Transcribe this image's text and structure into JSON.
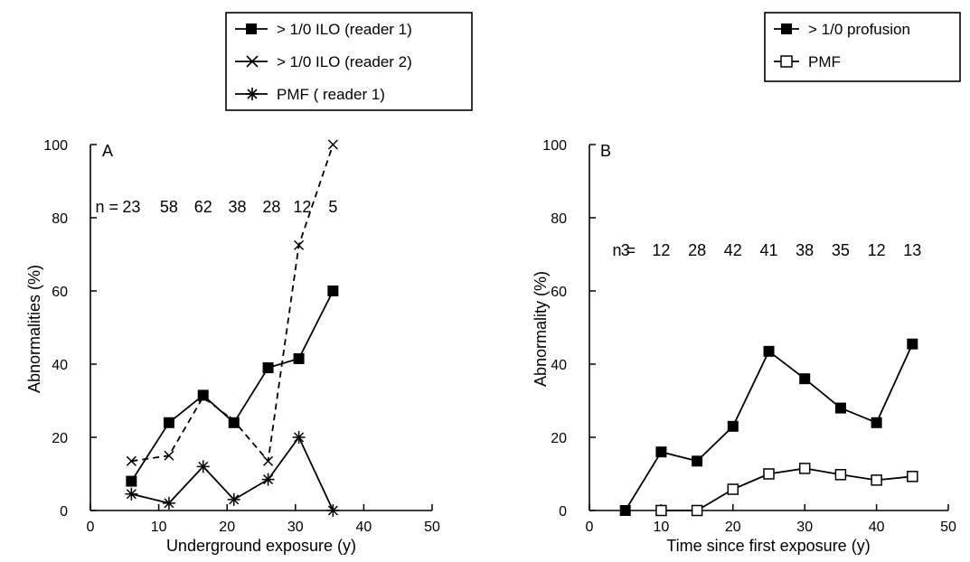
{
  "chart_data": [
    {
      "type": "line",
      "panel_label": "A",
      "xlabel": "Underground exposure (y)",
      "ylabel": "Abnormalities (%)",
      "xlim": [
        0,
        50
      ],
      "ylim": [
        0,
        100
      ],
      "xticks": [
        0,
        10,
        20,
        30,
        40,
        50
      ],
      "yticks": [
        0,
        20,
        40,
        60,
        80,
        100
      ],
      "n_prefix": "n = ",
      "n_labels": [
        {
          "x": 6,
          "text": "23"
        },
        {
          "x": 11.5,
          "text": "58"
        },
        {
          "x": 16.5,
          "text": "62"
        },
        {
          "x": 21.5,
          "text": "38"
        },
        {
          "x": 26.5,
          "text": "28"
        },
        {
          "x": 31,
          "text": "12"
        },
        {
          "x": 35.5,
          "text": "5"
        }
      ],
      "legend_position": "top",
      "series": [
        {
          "name": "> 1/0 ILO (reader 1)",
          "marker": "filled-square",
          "line": "solid",
          "x": [
            6,
            11.5,
            16.5,
            21,
            26,
            30.5,
            35.5
          ],
          "y": [
            8,
            24,
            31.5,
            24,
            39,
            41.5,
            60
          ]
        },
        {
          "name": "> 1/0 ILO (reader 2)",
          "marker": "cross",
          "line": "dashed",
          "x": [
            6,
            11.5,
            16.5,
            21,
            26,
            30.5,
            35.5
          ],
          "y": [
            13.5,
            15,
            31,
            24.5,
            13.5,
            72.5,
            100
          ]
        },
        {
          "name": "PMF ( reader 1)",
          "marker": "asterisk",
          "line": "solid",
          "x": [
            6,
            11.5,
            16.5,
            21,
            26,
            30.5,
            35.5
          ],
          "y": [
            4.5,
            2,
            12,
            3,
            8.5,
            20,
            0
          ]
        }
      ]
    },
    {
      "type": "line",
      "panel_label": "B",
      "xlabel": "Time since first exposure (y)",
      "ylabel": "Abnormality (%)",
      "xlim": [
        0,
        50
      ],
      "ylim": [
        0,
        100
      ],
      "xticks": [
        0,
        10,
        20,
        30,
        40,
        50
      ],
      "yticks": [
        0,
        20,
        40,
        60,
        80,
        100
      ],
      "n_prefix": "n = ",
      "n_labels": [
        {
          "x": 5,
          "text": "3"
        },
        {
          "x": 10,
          "text": "12"
        },
        {
          "x": 15,
          "text": "28"
        },
        {
          "x": 20,
          "text": "42"
        },
        {
          "x": 25,
          "text": "41"
        },
        {
          "x": 30,
          "text": "38"
        },
        {
          "x": 35,
          "text": "35"
        },
        {
          "x": 40,
          "text": "12"
        },
        {
          "x": 45,
          "text": "13"
        }
      ],
      "legend_position": "top-right",
      "series": [
        {
          "name": "> 1/0 profusion",
          "marker": "filled-square",
          "line": "solid",
          "x": [
            5,
            10,
            15,
            20,
            25,
            30,
            35,
            40,
            45
          ],
          "y": [
            0,
            16,
            13.5,
            23,
            43.5,
            36,
            28,
            24,
            45.5
          ]
        },
        {
          "name": "PMF",
          "marker": "open-square",
          "line": "solid",
          "x": [
            10,
            15,
            20,
            25,
            30,
            35,
            40,
            45
          ],
          "y": [
            0,
            0,
            5.8,
            10,
            11.5,
            9.8,
            8.3,
            9.3
          ]
        }
      ]
    }
  ]
}
